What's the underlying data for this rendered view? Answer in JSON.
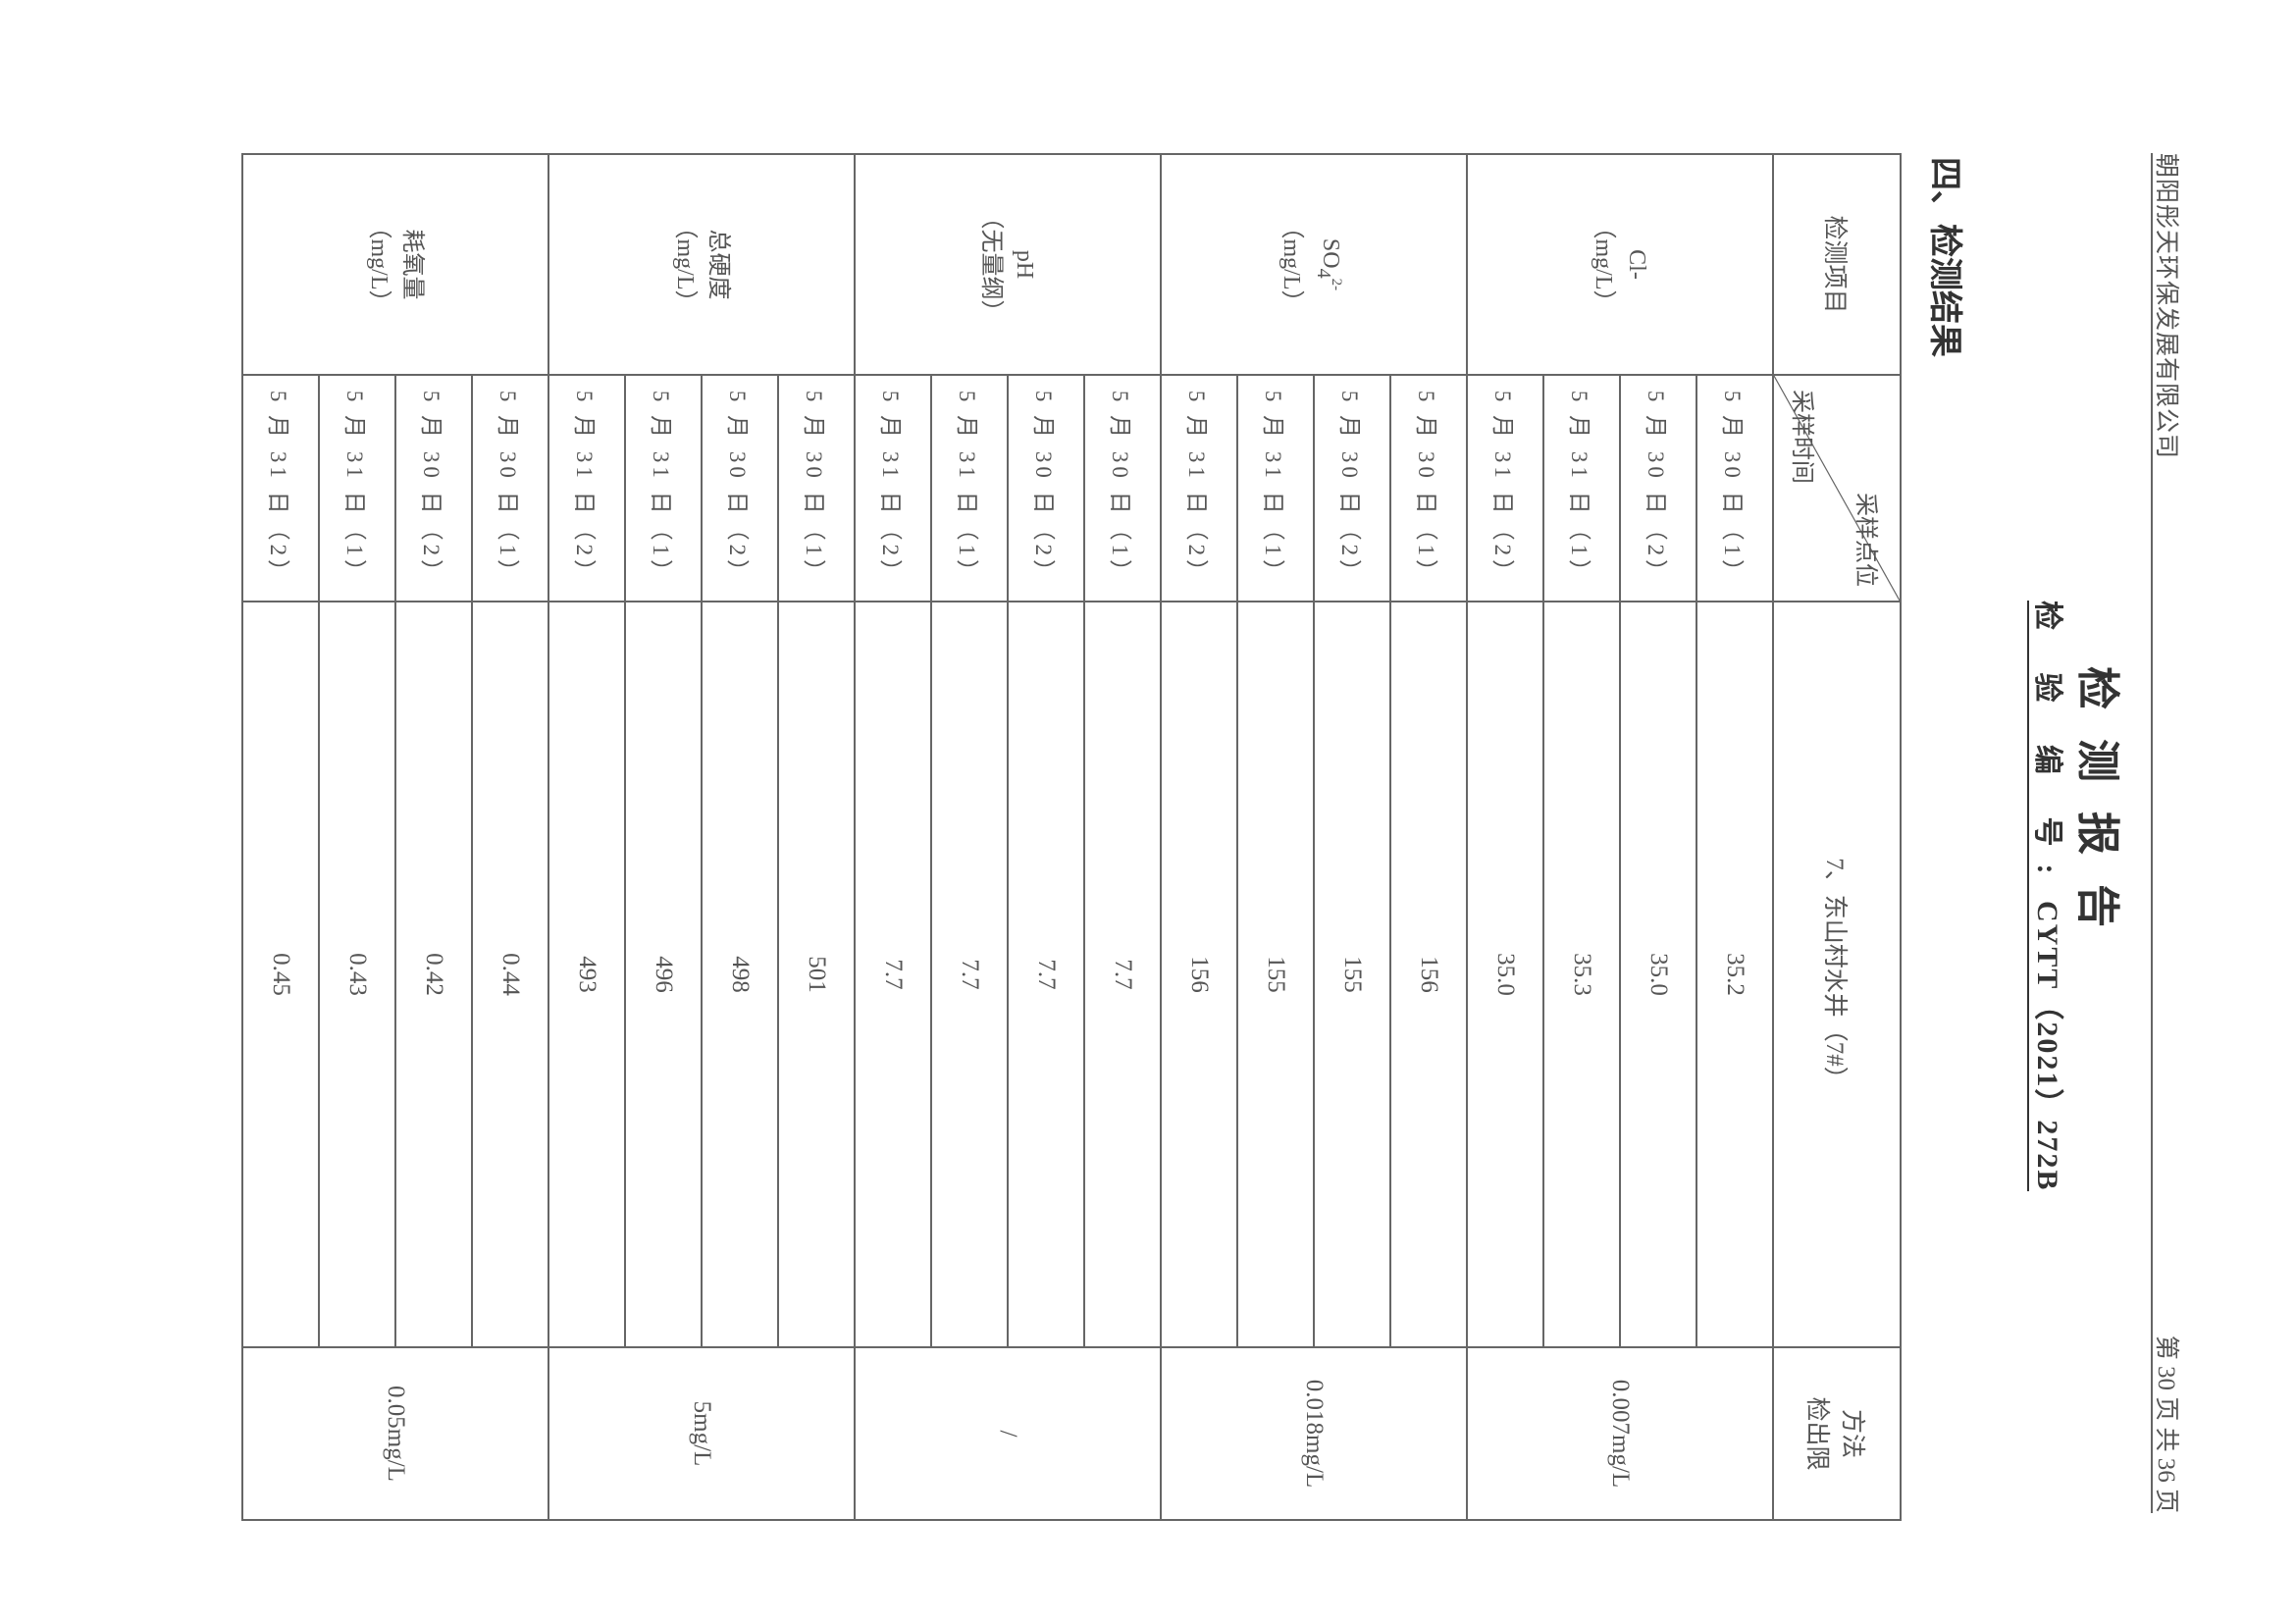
{
  "header": {
    "company": "朝阳彤天环保发展有限公司",
    "page_info": "第 30 页   共 36 页"
  },
  "title": "检测报告",
  "report_no": {
    "label": "检 验 编 号:",
    "value": "CYTT（2021）272B"
  },
  "section_title": "四、检测结果",
  "table": {
    "head_item": "检测项目",
    "head_site": "采样点位",
    "head_time": "采样时间",
    "site_name": "7、东山村水井（7#）",
    "head_limit_1": "方法",
    "head_limit_2": "检出限",
    "groups": [
      {
        "name": "Cl-",
        "unit": "（mg/L）",
        "limit": "0.007mg/L",
        "rows": [
          {
            "date": "5 月 30 日（1）",
            "value": "35.2"
          },
          {
            "date": "5 月 30 日（2）",
            "value": "35.0"
          },
          {
            "date": "5 月 31 日（1）",
            "value": "35.3"
          },
          {
            "date": "5 月 31 日（2）",
            "value": "35.0"
          }
        ]
      },
      {
        "name": "SO42-",
        "unit": "（mg/L）",
        "limit": "0.018mg/L",
        "rows": [
          {
            "date": "5 月 30 日（1）",
            "value": "156"
          },
          {
            "date": "5 月 30 日（2）",
            "value": "155"
          },
          {
            "date": "5 月 31 日（1）",
            "value": "155"
          },
          {
            "date": "5 月 31 日（2）",
            "value": "156"
          }
        ]
      },
      {
        "name": "pH",
        "unit": "（无量纲）",
        "limit": "/",
        "rows": [
          {
            "date": "5 月 30 日（1）",
            "value": "7.7"
          },
          {
            "date": "5 月 30 日（2）",
            "value": "7.7"
          },
          {
            "date": "5 月 31 日（1）",
            "value": "7.7"
          },
          {
            "date": "5 月 31 日（2）",
            "value": "7.7"
          }
        ]
      },
      {
        "name": "总硬度",
        "unit": "（mg/L）",
        "limit": "5mg/L",
        "rows": [
          {
            "date": "5 月 30 日（1）",
            "value": "501"
          },
          {
            "date": "5 月 30 日（2）",
            "value": "498"
          },
          {
            "date": "5 月 31 日（1）",
            "value": "496"
          },
          {
            "date": "5 月 31 日（2）",
            "value": "493"
          }
        ]
      },
      {
        "name": "耗氧量",
        "unit": "（mg/L）",
        "limit": "0.05mg/L",
        "rows": [
          {
            "date": "5 月 30 日（1）",
            "value": "0.44"
          },
          {
            "date": "5 月 30 日（2）",
            "value": "0.42"
          },
          {
            "date": "5 月 31 日（1）",
            "value": "0.43"
          },
          {
            "date": "5 月 31 日（2）",
            "value": "0.45"
          }
        ]
      }
    ]
  }
}
